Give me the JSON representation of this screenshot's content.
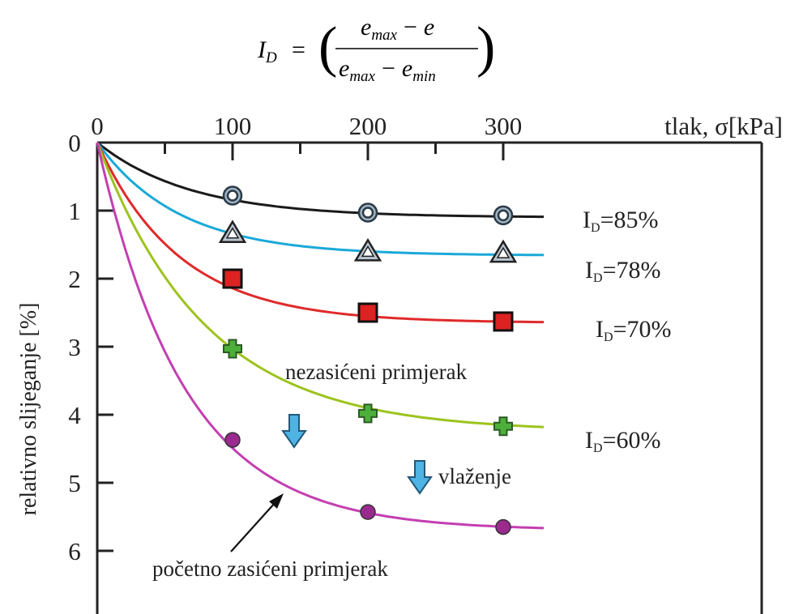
{
  "formula": {
    "lhs_main": "I",
    "lhs_sub": "D",
    "equals": "=",
    "num_main": "e",
    "num_sub": "max",
    "num_minus": "−",
    "num_var": "e",
    "den_main1": "e",
    "den_sub1": "max",
    "den_minus": "−",
    "den_main2": "e",
    "den_sub2": "min"
  },
  "chart_data": {
    "type": "line",
    "xlabel": "tlak, σ[kPa]",
    "ylabel": "relativno slijeganje [%]",
    "xlim": [
      0,
      335
    ],
    "ylim": [
      0,
      6.5
    ],
    "y_inverted": true,
    "x_axis_position": "top",
    "x_ticks": [
      0,
      100,
      200,
      300
    ],
    "x_minor_ticks": [
      50,
      150,
      250
    ],
    "y_ticks": [
      0,
      1,
      2,
      3,
      4,
      5,
      6
    ],
    "series": [
      {
        "name": "I_D=85%",
        "label_main": "I",
        "label_sub": "D",
        "label_rest": "=85%",
        "color": "#1a1a1a",
        "marker": "double-circle",
        "marker_fill": "#9fb4c4",
        "x": [
          100,
          200,
          300
        ],
        "y": [
          0.78,
          1.03,
          1.07
        ],
        "curve_end_x": 330,
        "asymptote": 1.1,
        "k": 0.0145
      },
      {
        "name": "I_D=78%",
        "label_main": "I",
        "label_sub": "D",
        "label_rest": "=78%",
        "color": "#19a9d8",
        "marker": "triangle",
        "marker_fill": "#b9c6d2",
        "x": [
          100,
          200,
          300
        ],
        "y": [
          1.33,
          1.6,
          1.62
        ],
        "curve_end_x": 330,
        "asymptote": 1.66,
        "k": 0.0165
      },
      {
        "name": "I_D=70%",
        "label_main": "I",
        "label_sub": "D",
        "label_rest": "=70%",
        "color": "#e02a2a",
        "marker": "square",
        "marker_fill": "#dd2222",
        "x": [
          100,
          200,
          300
        ],
        "y": [
          2.0,
          2.5,
          2.63
        ],
        "curve_end_x": 330,
        "asymptote": 2.65,
        "k": 0.0165
      },
      {
        "name": "I_D=60%",
        "label_main": "I",
        "label_sub": "D",
        "label_rest": "=60%",
        "color": "#9dc31e",
        "marker": "cross",
        "marker_fill": "#4caf3a",
        "x": [
          100,
          200,
          300
        ],
        "y": [
          3.03,
          3.98,
          4.17
        ],
        "curve_end_x": 330,
        "asymptote": 4.25,
        "k": 0.0125
      },
      {
        "name": "",
        "color": "#c33fb0",
        "marker": "circle",
        "marker_fill": "#9b2a8f",
        "x": [
          100,
          200,
          300
        ],
        "y": [
          4.37,
          5.43,
          5.65
        ],
        "curve_end_x": 330,
        "asymptote": 5.7,
        "k": 0.0155
      }
    ],
    "annotations": {
      "unsaturated": "nezasićeni primjerak",
      "wetting": "vlaženje",
      "initially_saturated": "početno zasićeni primjerak"
    }
  }
}
